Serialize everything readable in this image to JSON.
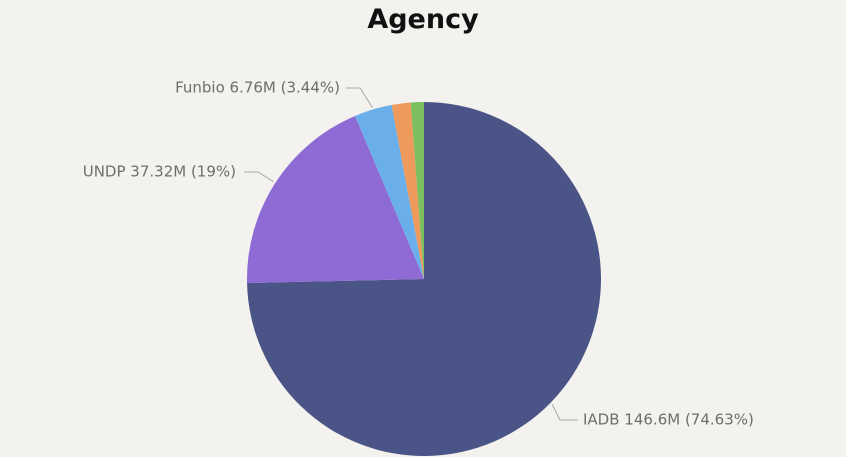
{
  "chart_data": {
    "type": "pie",
    "title": "Agency",
    "start_angle_deg": 0,
    "direction": "clockwise",
    "slices": [
      {
        "name": "IADB",
        "value": 146.6,
        "percent": 74.63,
        "label": "IADB 146.6M (74.63%)",
        "color": "#4a5487",
        "labeled": true
      },
      {
        "name": "UNDP",
        "value": 37.32,
        "percent": 19.0,
        "label": "UNDP 37.32M (19%)",
        "color": "#8e6bd4",
        "labeled": true
      },
      {
        "name": "Funbio",
        "value": 6.76,
        "percent": 3.44,
        "label": "Funbio 6.76M (3.44%)",
        "color": "#6aaeea",
        "labeled": true
      },
      {
        "name": "",
        "value": 3.4,
        "percent": 1.73,
        "label": "",
        "color": "#ee9a5c",
        "labeled": false
      },
      {
        "name": "",
        "value": 2.35,
        "percent": 1.2,
        "label": "",
        "color": "#7cbf5e",
        "labeled": false
      }
    ]
  }
}
